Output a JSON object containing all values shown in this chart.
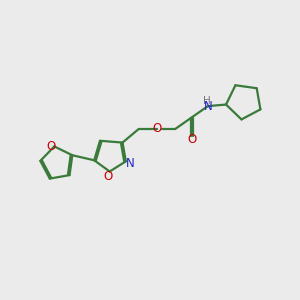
{
  "bg_color": "#EBEBEB",
  "bond_color": "#3a7a3a",
  "o_color": "#cc0000",
  "n_color": "#2222cc",
  "h_color": "#777777",
  "lw": 1.6,
  "figsize": [
    3.0,
    3.0
  ],
  "dpi": 100,
  "xlim": [
    0,
    10
  ],
  "ylim": [
    0,
    10
  ]
}
